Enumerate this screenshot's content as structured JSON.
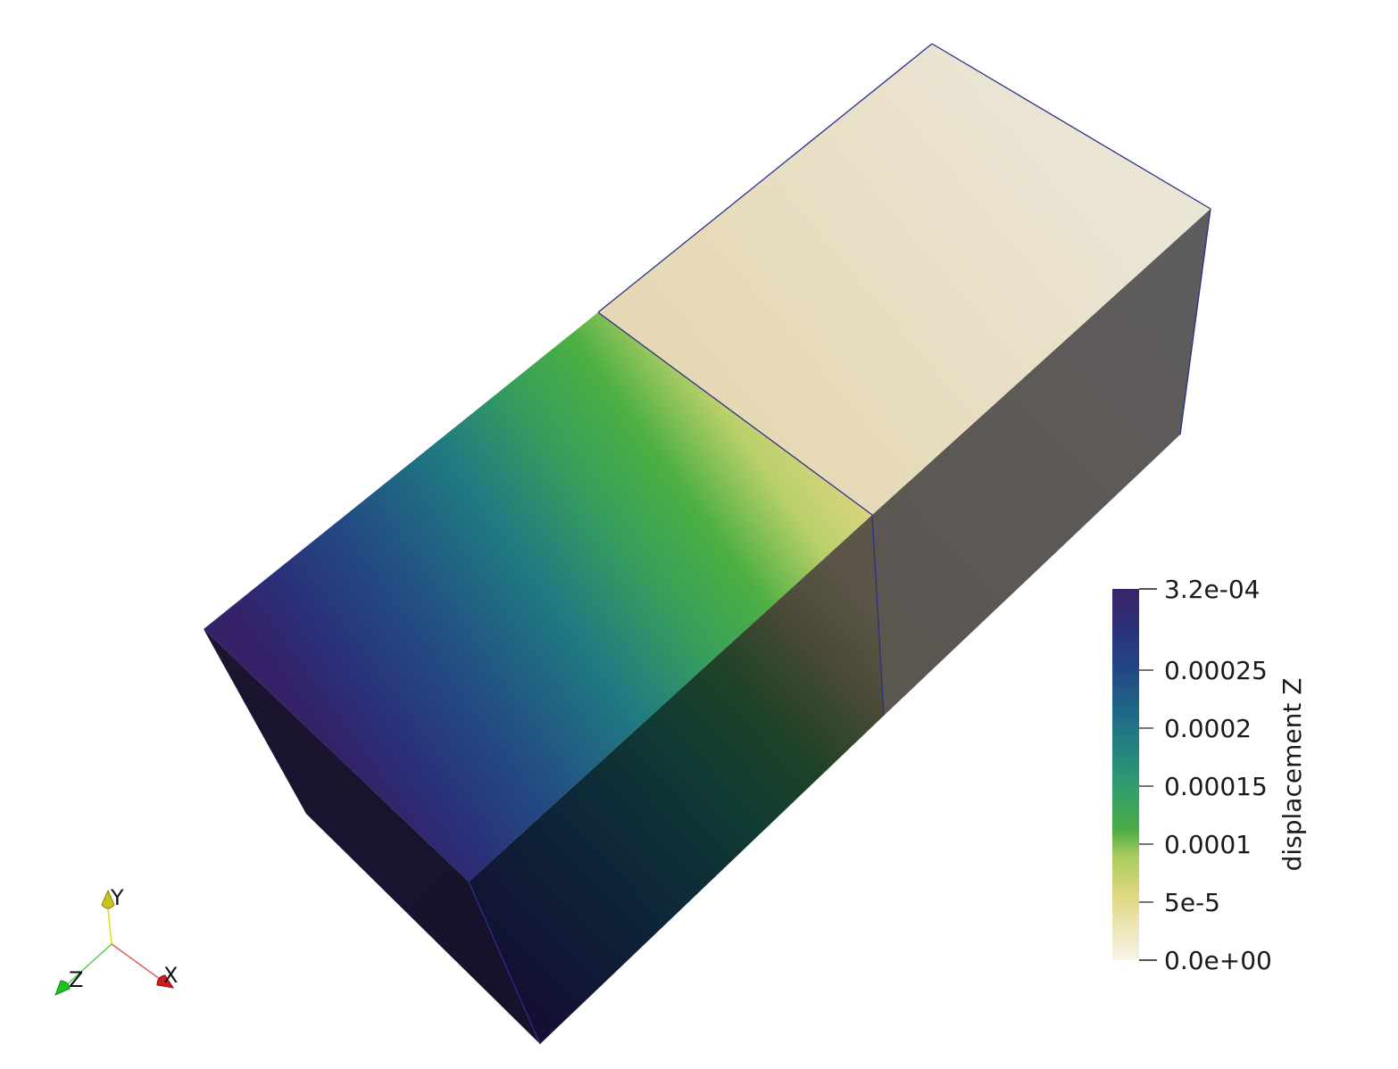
{
  "scene": {
    "type": "3d-render",
    "description_colormap": "viridis (reversed)"
  },
  "colorbar": {
    "title": "displacement Z",
    "min": 0.0,
    "max": 0.00032,
    "min_label": "0.0e+00",
    "max_label": "3.2e-04",
    "ticks": [
      {
        "value": 0.00025,
        "label": "0.00025"
      },
      {
        "value": 0.0002,
        "label": "0.0002"
      },
      {
        "value": 0.00015,
        "label": "0.00015"
      },
      {
        "value": 0.0001,
        "label": "0.0001"
      },
      {
        "value": 5e-05,
        "label": "5e-5"
      }
    ],
    "colors": [
      "#f7f1e4",
      "#e3dc94",
      "#c2d36a",
      "#4cae42",
      "#319c6c",
      "#1f8080",
      "#1d5f86",
      "#243b80",
      "#2b2a72",
      "#362266"
    ]
  },
  "axes_triad": {
    "x_label": "X",
    "y_label": "Y",
    "z_label": "Z",
    "x_color": "#d11a1a",
    "y_color": "#c9c418",
    "z_color": "#1fc21f"
  }
}
